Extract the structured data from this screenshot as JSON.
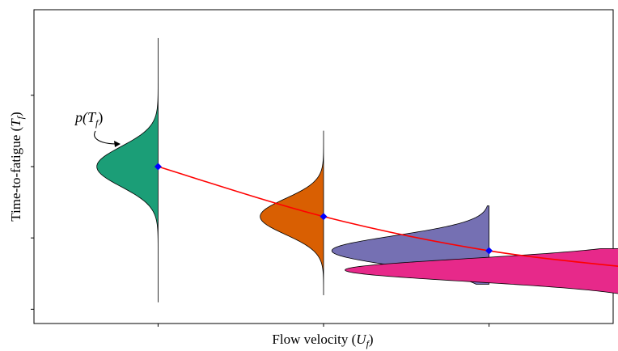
{
  "chart_data": {
    "type": "line",
    "title": "",
    "xlabel": "Flow velocity (U_f)",
    "xlabel_main": "Flow velocity (",
    "xlabel_var": "U",
    "xlabel_sub": "f",
    "xlabel_close": ")",
    "ylabel": "Time-to-fatigue (T_f)",
    "ylabel_main": "Time-to-fatigue (",
    "ylabel_var": "T",
    "ylabel_sub": "f",
    "ylabel_close": ")",
    "annotation": "p(T_f)",
    "annotation_p": "p(",
    "annotation_var": "T",
    "annotation_sub": "f",
    "annotation_close": ")",
    "xlim": [
      0.25,
      3.75
    ],
    "ylim": [
      0,
      4.4
    ],
    "x_ticks": [
      1,
      2,
      3,
      4
    ],
    "y_ticks": [
      0.2,
      1.2,
      2.2,
      3.2
    ],
    "grid": false,
    "curve_color": "#ff0000",
    "marker_color": "#0000ff",
    "series": [
      {
        "x": 1,
        "mean": 2.2,
        "sd": 0.28,
        "lo": 0.3,
        "hi": 4.0,
        "scale": 0.26,
        "color": "#1b9e77"
      },
      {
        "x": 2,
        "mean": 1.5,
        "sd": 0.25,
        "lo": 0.4,
        "hi": 2.7,
        "scale": 0.24,
        "color": "#d95f02"
      },
      {
        "x": 3,
        "mean": 1.02,
        "sd": 0.21,
        "lo": 0.55,
        "hi": 1.65,
        "scale": 0.5,
        "color": "#7570b3"
      },
      {
        "x": 4,
        "mean": 0.75,
        "sd": 0.16,
        "lo": 0.3,
        "hi": 1.05,
        "scale": 0.75,
        "color": "#e7298a"
      }
    ]
  }
}
